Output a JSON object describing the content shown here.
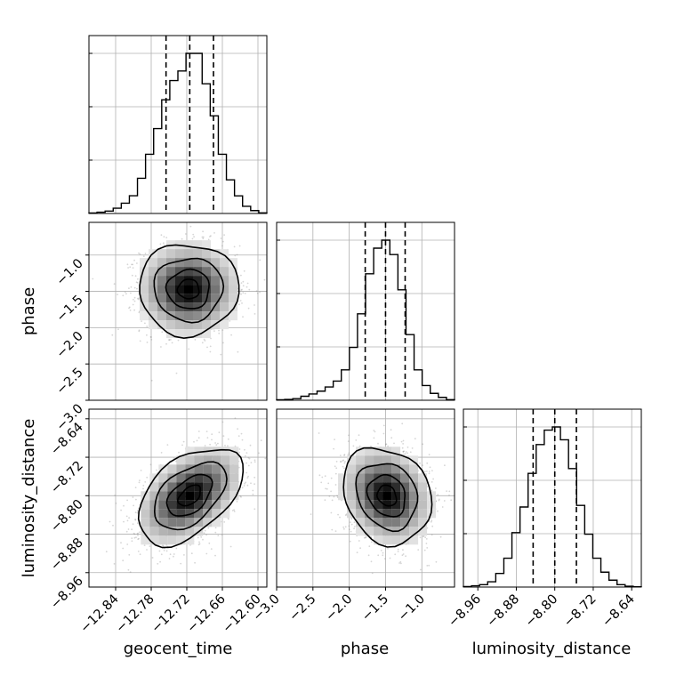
{
  "chart_data": {
    "type": "corner",
    "grid": true,
    "parameters": [
      {
        "name": "geocent_time",
        "axis_label": "geocent_time",
        "range": [
          -12.885,
          -12.585
        ],
        "ticks": [
          -12.84,
          -12.78,
          -12.72,
          -12.66,
          -12.6
        ],
        "tick_labels": [
          "−12.84",
          "−12.78",
          "−12.72",
          "−12.66",
          "−12.60"
        ],
        "quantiles": [
          -12.755,
          -12.715,
          -12.675
        ],
        "hist_edges": [
          -12.885,
          -12.585
        ],
        "hist_values": [
          0.3,
          0.8,
          1.5,
          3.3,
          6.4,
          11.1,
          22,
          37,
          53,
          71,
          83,
          89,
          100,
          100,
          81,
          61,
          37,
          21,
          11,
          4.5,
          1.8,
          0.4
        ]
      },
      {
        "name": "phase",
        "axis_label": "phase",
        "range": [
          -3.0,
          -0.55
        ],
        "ticks": [
          -3.0,
          -2.5,
          -2.0,
          -1.5,
          -1.0
        ],
        "tick_labels": [
          "−3.0",
          "−2.5",
          "−2.0",
          "−1.5",
          "−1.0"
        ],
        "quantiles": [
          -1.78,
          -1.5,
          -1.23
        ],
        "hist_edges": [
          -3.0,
          -0.55
        ],
        "hist_values": [
          0.3,
          0.5,
          1,
          2.5,
          3.9,
          5.7,
          8.3,
          12,
          19,
          33,
          54,
          79,
          95,
          100,
          91,
          69,
          41,
          19,
          9.2,
          4.3,
          1.8,
          0.4
        ]
      },
      {
        "name": "luminosity_distance",
        "axis_label": "luminosity_distance",
        "range": [
          -8.99,
          -8.62
        ],
        "ticks": [
          -8.96,
          -8.88,
          -8.8,
          -8.72,
          -8.64
        ],
        "tick_labels": [
          "−8.96",
          "−8.88",
          "−8.80",
          "−8.72",
          "−8.64"
        ],
        "quantiles": [
          -8.845,
          -8.8,
          -8.755
        ],
        "hist_edges": [
          -8.99,
          -8.62
        ],
        "hist_values": [
          0.3,
          0.8,
          1.5,
          3.3,
          8.5,
          18,
          34,
          50,
          71,
          89,
          98,
          100,
          92,
          74,
          51,
          33,
          18,
          9.3,
          4.3,
          1.5,
          0.5,
          0.2
        ]
      }
    ],
    "pairs": [
      {
        "x": "geocent_time",
        "y": "phase",
        "center": [
          -12.717,
          -1.47
        ],
        "spread": [
          0.04,
          0.3
        ],
        "rho": 0.0
      },
      {
        "x": "geocent_time",
        "y": "luminosity_distance",
        "center": [
          -12.715,
          -8.8
        ],
        "spread": [
          0.042,
          0.048
        ],
        "rho": 0.48
      },
      {
        "x": "phase",
        "y": "luminosity_distance",
        "center": [
          -1.48,
          -8.8
        ],
        "spread": [
          0.29,
          0.048
        ],
        "rho": -0.18
      }
    ]
  }
}
